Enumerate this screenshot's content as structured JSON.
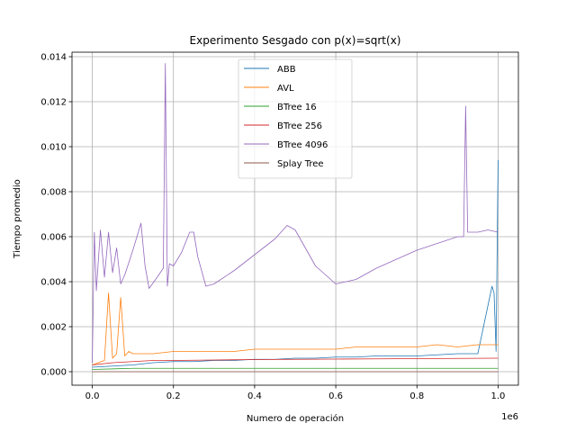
{
  "chart_data": {
    "type": "line",
    "title": "Experimento Sesgado con p(x)=sqrt(x)",
    "xlabel": "Numero de operación",
    "ylabel": "Tiempo promedio",
    "x_offset_label": "1e6",
    "xlim": [
      -0.05,
      1.05
    ],
    "ylim": [
      -0.0006,
      0.0142
    ],
    "x_ticks": [
      0.0,
      0.2,
      0.4,
      0.6,
      0.8,
      1.0
    ],
    "x_tick_labels": [
      "0.0",
      "0.2",
      "0.4",
      "0.6",
      "0.8",
      "1.0"
    ],
    "y_ticks": [
      0.0,
      0.002,
      0.004,
      0.006,
      0.008,
      0.01,
      0.012,
      0.014
    ],
    "y_tick_labels": [
      "0.000",
      "0.002",
      "0.004",
      "0.006",
      "0.008",
      "0.010",
      "0.012",
      "0.014"
    ],
    "grid": true,
    "legend_position": "top-center",
    "series": [
      {
        "name": "ABB",
        "color": "#1f77b4",
        "x": [
          0.0,
          0.05,
          0.1,
          0.15,
          0.2,
          0.25,
          0.3,
          0.35,
          0.4,
          0.45,
          0.5,
          0.55,
          0.6,
          0.65,
          0.7,
          0.75,
          0.8,
          0.85,
          0.9,
          0.95,
          0.985,
          0.99,
          0.995,
          1.0
        ],
        "y": [
          0.0002,
          0.00025,
          0.0003,
          0.0004,
          0.00045,
          0.00045,
          0.0005,
          0.0005,
          0.00055,
          0.00055,
          0.0006,
          0.0006,
          0.00065,
          0.00065,
          0.0007,
          0.0007,
          0.0007,
          0.00075,
          0.0008,
          0.0008,
          0.0038,
          0.0035,
          0.0009,
          0.0094
        ]
      },
      {
        "name": "AVL",
        "color": "#ff7f0e",
        "x": [
          0.0,
          0.03,
          0.04,
          0.05,
          0.06,
          0.07,
          0.08,
          0.09,
          0.1,
          0.15,
          0.2,
          0.25,
          0.3,
          0.35,
          0.4,
          0.45,
          0.5,
          0.55,
          0.6,
          0.65,
          0.7,
          0.75,
          0.8,
          0.85,
          0.9,
          0.95,
          1.0
        ],
        "y": [
          0.0003,
          0.0005,
          0.0035,
          0.0006,
          0.0008,
          0.0033,
          0.0007,
          0.0009,
          0.0008,
          0.0008,
          0.0009,
          0.0009,
          0.0009,
          0.0009,
          0.001,
          0.001,
          0.001,
          0.001,
          0.001,
          0.0011,
          0.0011,
          0.0011,
          0.0011,
          0.0012,
          0.0011,
          0.0012,
          0.0012
        ]
      },
      {
        "name": "BTree 16",
        "color": "#2ca02c",
        "x": [
          0.0,
          0.1,
          0.2,
          0.3,
          0.4,
          0.5,
          0.6,
          0.7,
          0.8,
          0.9,
          1.0
        ],
        "y": [
          0.0001,
          0.00015,
          0.00015,
          0.00015,
          0.00015,
          0.00015,
          0.00015,
          0.00015,
          0.00015,
          0.00015,
          0.00015
        ]
      },
      {
        "name": "BTree 256",
        "color": "#d62728",
        "x": [
          0.0,
          0.05,
          0.1,
          0.15,
          0.2,
          0.3,
          0.4,
          0.5,
          0.6,
          0.7,
          0.8,
          0.9,
          1.0
        ],
        "y": [
          0.0003,
          0.0004,
          0.00045,
          0.0005,
          0.0005,
          0.00052,
          0.00054,
          0.00055,
          0.00056,
          0.00057,
          0.00058,
          0.00059,
          0.0006
        ]
      },
      {
        "name": "BTree 4096",
        "color": "#9467bd",
        "x": [
          0.0,
          0.005,
          0.01,
          0.02,
          0.03,
          0.04,
          0.05,
          0.06,
          0.07,
          0.08,
          0.1,
          0.12,
          0.13,
          0.14,
          0.16,
          0.175,
          0.18,
          0.185,
          0.19,
          0.2,
          0.22,
          0.24,
          0.25,
          0.26,
          0.28,
          0.3,
          0.35,
          0.4,
          0.45,
          0.48,
          0.5,
          0.55,
          0.6,
          0.65,
          0.7,
          0.75,
          0.8,
          0.85,
          0.9,
          0.915,
          0.92,
          0.925,
          0.95,
          0.975,
          1.0
        ],
        "y": [
          0.0004,
          0.0062,
          0.0036,
          0.0063,
          0.0042,
          0.0062,
          0.0044,
          0.0055,
          0.0039,
          0.0043,
          0.0054,
          0.0066,
          0.0047,
          0.0037,
          0.0042,
          0.0046,
          0.0137,
          0.0038,
          0.0048,
          0.0047,
          0.0053,
          0.0062,
          0.0062,
          0.0051,
          0.0038,
          0.0039,
          0.0045,
          0.0052,
          0.0059,
          0.0065,
          0.0063,
          0.0047,
          0.0039,
          0.0041,
          0.0046,
          0.005,
          0.0054,
          0.0057,
          0.006,
          0.006,
          0.0118,
          0.0062,
          0.0062,
          0.0063,
          0.0062
        ]
      },
      {
        "name": "Splay Tree",
        "color": "#8c564b",
        "x": [
          0.0,
          0.1,
          0.2,
          0.3,
          0.4,
          0.5,
          0.6,
          0.7,
          0.8,
          0.9,
          1.0
        ],
        "y": [
          0.0,
          0.0,
          0.0,
          0.0,
          0.0,
          0.0,
          0.0,
          0.0,
          0.0,
          0.0,
          0.0
        ]
      }
    ]
  }
}
